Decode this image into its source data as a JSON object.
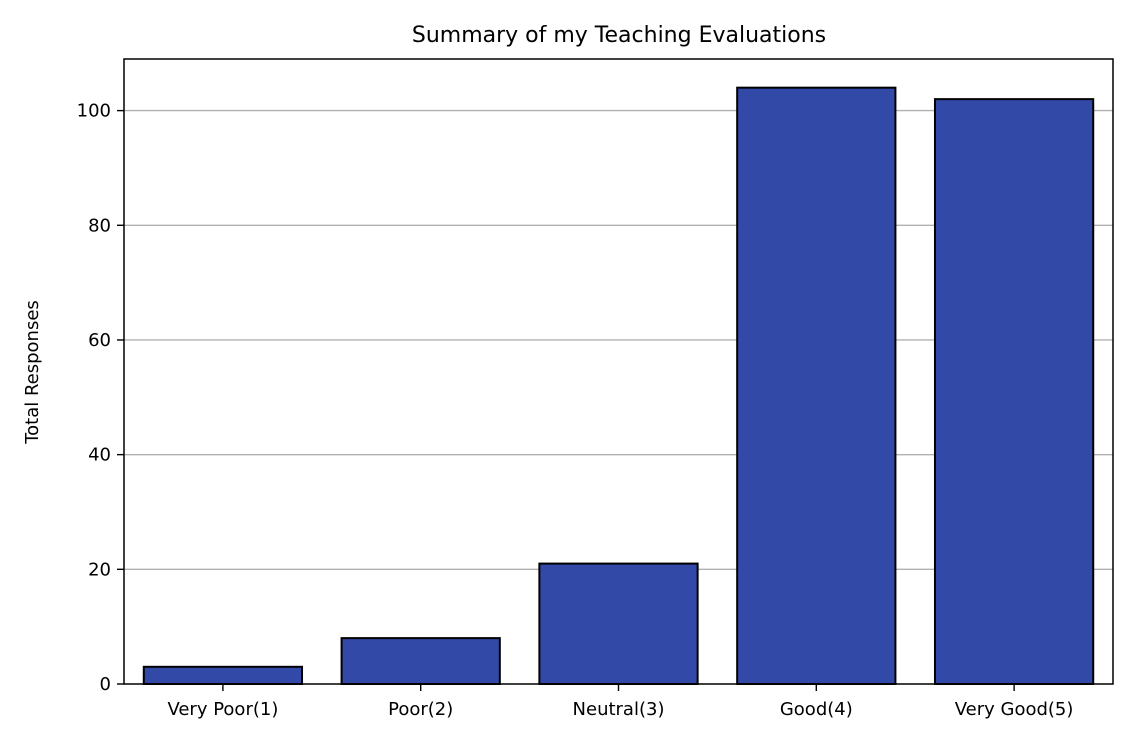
{
  "chart_data": {
    "type": "bar",
    "title": "Summary of my Teaching Evaluations",
    "xlabel": "",
    "ylabel": "Total Responses",
    "categories": [
      "Very Poor(1)",
      "Poor(2)",
      "Neutral(3)",
      "Good(4)",
      "Very Good(5)"
    ],
    "values": [
      3,
      8,
      21,
      104,
      102
    ],
    "ylim": [
      0,
      109
    ],
    "yticks": [
      0,
      20,
      40,
      60,
      80,
      100
    ],
    "grid": "y",
    "legend": "none",
    "bar_color": "#3349a8",
    "bar_edge_color": "#000000",
    "grid_color": "#b0b0b0"
  }
}
